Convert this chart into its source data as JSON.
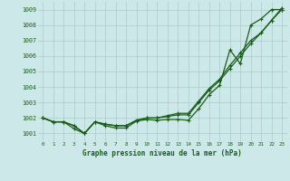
{
  "title": "Graphe pression niveau de la mer (hPa)",
  "bg_color": "#cce8e8",
  "grid_color": "#aacccc",
  "line_color": "#1a5c1a",
  "x_labels": [
    "0",
    "1",
    "2",
    "3",
    "4",
    "5",
    "6",
    "7",
    "8",
    "9",
    "10",
    "11",
    "12",
    "13",
    "14",
    "15",
    "16",
    "17",
    "18",
    "19",
    "20",
    "21",
    "22",
    "23"
  ],
  "ylim": [
    1000.5,
    1009.5
  ],
  "yticks": [
    1001,
    1002,
    1003,
    1004,
    1005,
    1006,
    1007,
    1008,
    1009
  ],
  "series1": [
    1002.0,
    1001.75,
    1001.75,
    1001.5,
    1001.0,
    1001.75,
    1001.5,
    1001.35,
    1001.35,
    1001.8,
    1001.9,
    1001.85,
    1001.9,
    1001.9,
    1001.85,
    1002.6,
    1003.5,
    1004.1,
    1006.4,
    1005.5,
    1008.0,
    1008.4,
    1009.0,
    1009.0
  ],
  "series2": [
    1002.0,
    1001.75,
    1001.75,
    1001.5,
    1001.0,
    1001.75,
    1001.6,
    1001.5,
    1001.5,
    1001.85,
    1002.0,
    1002.0,
    1002.1,
    1002.2,
    1002.2,
    1003.0,
    1003.8,
    1004.4,
    1005.2,
    1006.0,
    1006.8,
    1007.5,
    1008.3,
    1009.0
  ],
  "series3": [
    1002.0,
    1001.75,
    1001.75,
    1001.3,
    1001.0,
    1001.75,
    1001.6,
    1001.5,
    1001.5,
    1001.85,
    1002.0,
    1002.0,
    1002.15,
    1002.3,
    1002.3,
    1003.1,
    1003.9,
    1004.5,
    1005.4,
    1006.2,
    1007.0,
    1007.5,
    1008.3,
    1009.1
  ]
}
